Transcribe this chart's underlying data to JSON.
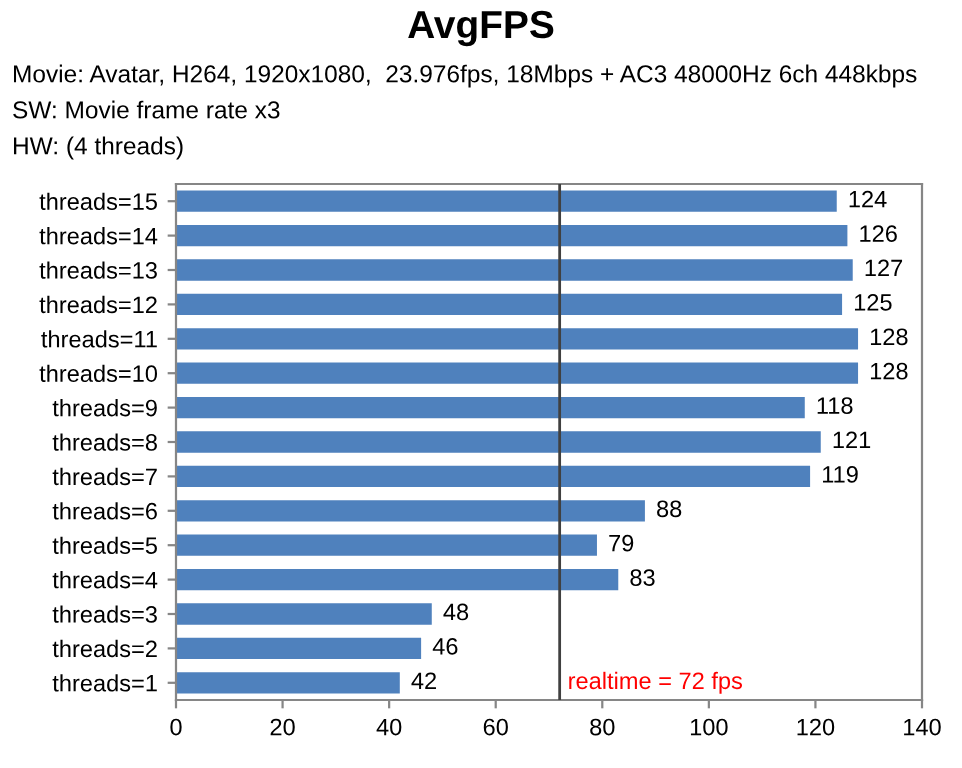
{
  "chart_data": {
    "type": "bar",
    "orientation": "horizontal",
    "title": "AvgFPS",
    "subtitle": [
      "Movie: Avatar, H264, 1920x1080,  23.976fps, 18Mbps + AC3 48000Hz 6ch 448kbps",
      "SW: Movie frame rate x3",
      "HW: (4 threads)"
    ],
    "categories": [
      "threads=15",
      "threads=14",
      "threads=13",
      "threads=12",
      "threads=11",
      "threads=10",
      "threads=9",
      "threads=8",
      "threads=7",
      "threads=6",
      "threads=5",
      "threads=4",
      "threads=3",
      "threads=2",
      "threads=1"
    ],
    "values": [
      124,
      126,
      127,
      125,
      128,
      128,
      118,
      121,
      119,
      88,
      79,
      83,
      48,
      46,
      42
    ],
    "color": "#4f81bd",
    "xlim": [
      0,
      140
    ],
    "xticks": [
      0,
      20,
      40,
      60,
      80,
      100,
      120,
      140
    ],
    "data_labels": true,
    "grid": false,
    "ref_lines": [
      {
        "axis": "x",
        "value": 72,
        "label": "realtime = 72 fps",
        "color": "#404040"
      }
    ]
  }
}
